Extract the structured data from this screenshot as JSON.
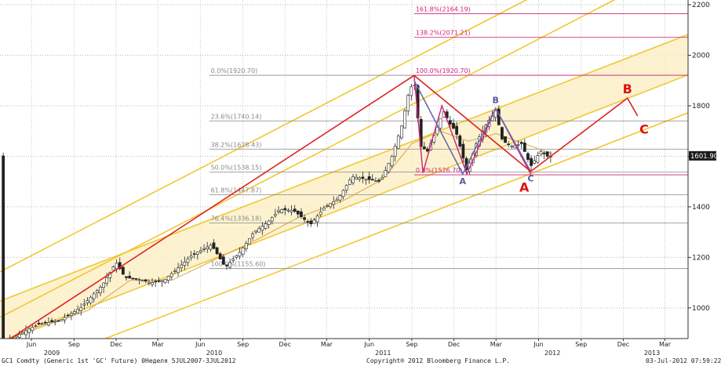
{
  "chart_data": {
    "type": "candlestick",
    "y_axis": {
      "ticks": [
        1000,
        1200,
        1400,
        1600,
        1800,
        2000,
        2200
      ],
      "range": [
        860,
        2200
      ],
      "position": "right"
    },
    "x_axis": {
      "month_ticks": [
        {
          "label": "Jun",
          "date": "2009-06-01"
        },
        {
          "label": "Sep",
          "date": "2009-09-01"
        },
        {
          "label": "Dec",
          "date": "2009-12-01"
        },
        {
          "label": "Mar",
          "date": "2010-03-01"
        },
        {
          "label": "Jun",
          "date": "2010-06-01"
        },
        {
          "label": "Sep",
          "date": "2010-09-01"
        },
        {
          "label": "Dec",
          "date": "2010-12-01"
        },
        {
          "label": "Mar",
          "date": "2011-03-01"
        },
        {
          "label": "Jun",
          "date": "2011-06-01"
        },
        {
          "label": "Sep",
          "date": "2011-09-01"
        },
        {
          "label": "Dec",
          "date": "2011-12-01"
        },
        {
          "label": "Mar",
          "date": "2012-03-01"
        },
        {
          "label": "Jun",
          "date": "2012-06-01"
        },
        {
          "label": "Sep",
          "date": "2012-09-01"
        },
        {
          "label": "Dec",
          "date": "2012-12-01"
        },
        {
          "label": "Mar",
          "date": "2013-03-01"
        }
      ],
      "year_labels": [
        {
          "label": "2009",
          "date": "2009-07-15"
        },
        {
          "label": "2010",
          "date": "2010-07-01"
        },
        {
          "label": "2011",
          "date": "2011-07-01"
        },
        {
          "label": "2012",
          "date": "2012-07-01"
        },
        {
          "label": "2013",
          "date": "2013-02-01"
        }
      ]
    },
    "last_price": {
      "label": "1601.90",
      "value": 1601.9
    },
    "price_path": [
      [
        "2009-04-01",
        860
      ],
      [
        "2009-05-15",
        905
      ],
      [
        "2009-06-15",
        935
      ],
      [
        "2009-08-01",
        950
      ],
      [
        "2009-09-15",
        1000
      ],
      [
        "2009-11-01",
        1090
      ],
      [
        "2009-12-01",
        1180
      ],
      [
        "2009-12-20",
        1120
      ],
      [
        "2010-01-15",
        1115
      ],
      [
        "2010-02-15",
        1100
      ],
      [
        "2010-03-15",
        1110
      ],
      [
        "2010-04-15",
        1160
      ],
      [
        "2010-05-15",
        1210
      ],
      [
        "2010-06-25",
        1250
      ],
      [
        "2010-07-25",
        1160
      ],
      [
        "2010-08-25",
        1220
      ],
      [
        "2010-09-25",
        1300
      ],
      [
        "2010-10-25",
        1340
      ],
      [
        "2010-11-20",
        1390
      ],
      [
        "2010-12-20",
        1385
      ],
      [
        "2011-01-25",
        1330
      ],
      [
        "2011-02-25",
        1400
      ],
      [
        "2011-03-25",
        1430
      ],
      [
        "2011-04-25",
        1520
      ],
      [
        "2011-05-25",
        1510
      ],
      [
        "2011-06-25",
        1500
      ],
      [
        "2011-07-20",
        1600
      ],
      [
        "2011-08-10",
        1720
      ],
      [
        "2011-08-25",
        1850
      ],
      [
        "2011-09-06",
        1900
      ],
      [
        "2011-09-20",
        1640
      ],
      [
        "2011-10-05",
        1620
      ],
      [
        "2011-10-25",
        1710
      ],
      [
        "2011-11-08",
        1780
      ],
      [
        "2011-11-25",
        1720
      ],
      [
        "2011-12-05",
        1700
      ],
      [
        "2011-12-29",
        1540
      ],
      [
        "2012-01-20",
        1660
      ],
      [
        "2012-02-10",
        1730
      ],
      [
        "2012-02-29",
        1780
      ],
      [
        "2012-03-15",
        1660
      ],
      [
        "2012-04-05",
        1640
      ],
      [
        "2012-04-25",
        1650
      ],
      [
        "2012-05-15",
        1560
      ],
      [
        "2012-06-05",
        1620
      ],
      [
        "2012-06-20",
        1600
      ],
      [
        "2012-07-03",
        1601.9
      ]
    ],
    "moving_average": [
      [
        "2009-04-01",
        870
      ],
      [
        "2009-07-01",
        930
      ],
      [
        "2009-10-01",
        990
      ],
      [
        "2010-01-01",
        1110
      ],
      [
        "2010-04-01",
        1110
      ],
      [
        "2010-07-01",
        1190
      ],
      [
        "2010-10-01",
        1270
      ],
      [
        "2011-01-01",
        1360
      ],
      [
        "2011-04-01",
        1420
      ],
      [
        "2011-07-01",
        1510
      ],
      [
        "2011-09-01",
        1650
      ],
      [
        "2011-11-01",
        1700
      ],
      [
        "2012-01-01",
        1660
      ],
      [
        "2012-03-01",
        1690
      ],
      [
        "2012-05-01",
        1650
      ],
      [
        "2012-07-01",
        1610
      ]
    ],
    "fibonacci": [
      {
        "label": "0.0%(1920.70)",
        "value": 1920.7,
        "start": "2010-06-20",
        "end": "2013-05-01"
      },
      {
        "label": "23.6%(1740.14)",
        "value": 1740.14,
        "start": "2010-06-20",
        "end": "2013-05-01"
      },
      {
        "label": "38.2%(1628.43)",
        "value": 1628.43,
        "start": "2010-06-20",
        "end": "2013-05-01"
      },
      {
        "label": "50.0%(1538.15)",
        "value": 1538.15,
        "start": "2010-06-20",
        "end": "2013-05-01"
      },
      {
        "label": "61.8%(1447.87)",
        "value": 1447.87,
        "start": "2010-06-20",
        "end": "2013-05-01"
      },
      {
        "label": "76.4%(1336.18)",
        "value": 1336.18,
        "start": "2010-06-20",
        "end": "2013-05-01"
      },
      {
        "label": "100.0%(1155.60)",
        "value": 1155.6,
        "start": "2010-06-20",
        "end": "2013-05-01"
      },
      {
        "label": "100.0%(1920.70)",
        "value": 1920.7,
        "start": "2011-09-06",
        "end": "2013-05-01",
        "color": "#cc2277"
      },
      {
        "label": "0.0%(1526.70)",
        "value": 1526.7,
        "start": "2011-09-06",
        "end": "2013-05-01",
        "color": "#cc2277"
      },
      {
        "label": "138.2%(2071.21)",
        "value": 2071.21,
        "start": "2011-09-06",
        "end": "2013-05-01",
        "color": "#cc2277"
      },
      {
        "label": "161.8%(2164.19)",
        "value": 2164.19,
        "start": "2011-09-06",
        "end": "2013-05-01",
        "color": "#cc2277"
      }
    ],
    "channels": [
      {
        "start": [
          "2009-03-01",
          1120
        ],
        "end": [
          "2013-05-01",
          2560
        ],
        "color": "#f0c832"
      },
      {
        "start": [
          "2009-03-01",
          940
        ],
        "end": [
          "2013-05-01",
          2380
        ],
        "color": "#f0c832"
      },
      {
        "start": [
          "2009-03-01",
          1010
        ],
        "end": [
          "2013-05-01",
          2090
        ],
        "color": "#f0c832"
      },
      {
        "start": [
          "2009-03-01",
          850
        ],
        "end": [
          "2013-05-01",
          1930
        ],
        "color": "#f0c832"
      },
      {
        "start": [
          "2009-03-01",
          700
        ],
        "end": [
          "2013-05-01",
          1780
        ],
        "color": "#f0c832"
      }
    ],
    "band": {
      "upper": [
        [
          "2009-03-01",
          1010
        ],
        [
          "2013-05-01",
          2090
        ]
      ],
      "lower": [
        [
          "2009-03-01",
          850
        ],
        [
          "2013-05-01",
          1930
        ]
      ]
    },
    "red_path": [
      [
        "2009-04-01",
        860
      ],
      [
        "2011-09-06",
        1920
      ],
      [
        "2012-05-15",
        1540
      ],
      [
        "2012-12-10",
        1830
      ],
      [
        "2013-01-01",
        1760
      ]
    ],
    "blue_pattern": [
      [
        "2011-09-06",
        1900
      ],
      [
        "2011-12-20",
        1530
      ],
      [
        "2012-02-29",
        1790
      ],
      [
        "2012-05-15",
        1540
      ]
    ],
    "red_zigzag": [
      [
        "2011-09-06",
        1920
      ],
      [
        "2011-09-25",
        1535
      ],
      [
        "2011-11-05",
        1800
      ],
      [
        "2011-12-29",
        1530
      ],
      [
        "2012-02-29",
        1790
      ],
      [
        "2012-05-15",
        1530
      ]
    ],
    "annotations": [
      {
        "text": "A",
        "date": "2011-12-20",
        "value": 1490,
        "color": "#5a5aa0",
        "size": "small"
      },
      {
        "text": "B",
        "date": "2012-02-29",
        "value": 1810,
        "color": "#5a5aa0",
        "size": "small"
      },
      {
        "text": "C",
        "date": "2012-05-15",
        "value": 1500,
        "color": "#5a5aa0",
        "size": "small"
      },
      {
        "text": "A",
        "date": "2012-05-01",
        "value": 1460,
        "color": "#dd1111",
        "size": "large"
      },
      {
        "text": "B",
        "date": "2012-12-10",
        "value": 1850,
        "color": "#dd1111",
        "size": "large"
      },
      {
        "text": "C",
        "date": "2013-01-15",
        "value": 1690,
        "color": "#dd1111",
        "size": "large"
      }
    ]
  },
  "footer": {
    "left": "GC1 Comdty (Generic 1st 'GC' Future) 0Неделя 5JUL2007-3JUL2012",
    "center": "Copyright® 2012 Bloomberg Finance L.P.",
    "right": "03-Jul-2012 07:59:22"
  }
}
